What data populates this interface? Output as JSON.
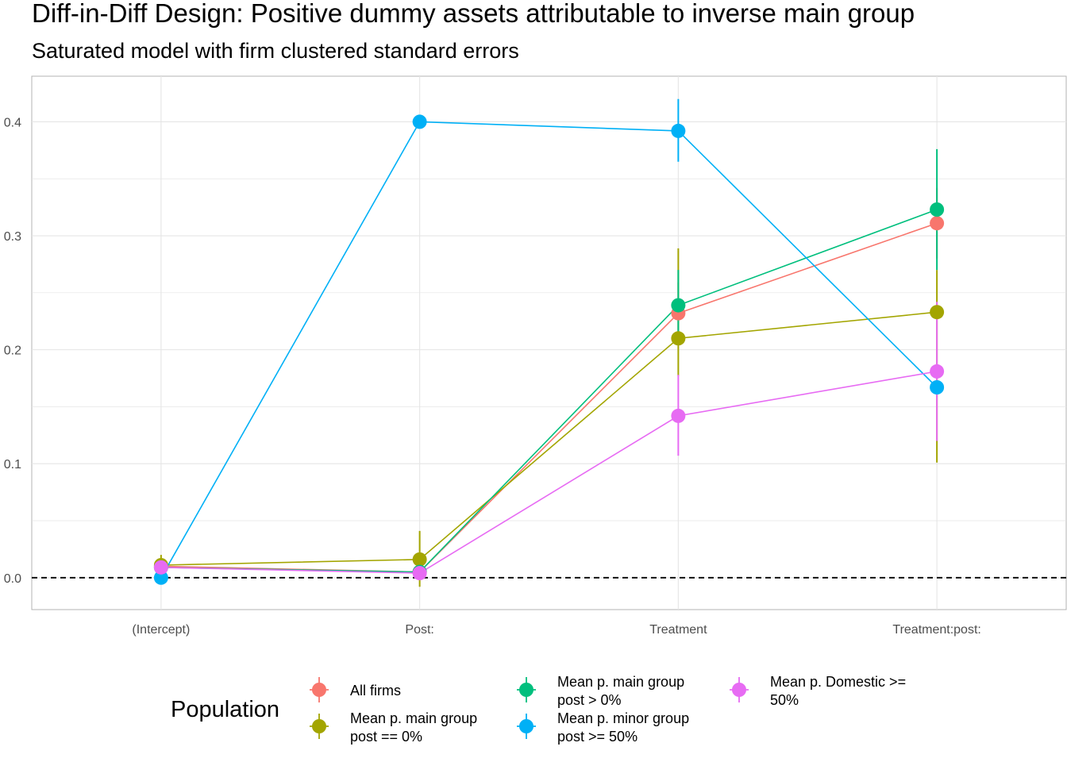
{
  "chart_data": {
    "type": "scatter",
    "title": "Diff-in-Diff Design: Positive dummy assets attributable to inverse main group",
    "subtitle": "Saturated model with firm clustered standard errors",
    "categories": [
      "(Intercept)",
      "Post:",
      "Treatment",
      "Treatment:post:"
    ],
    "ylim": [
      -0.028,
      0.44
    ],
    "y_ticks": [
      0.0,
      0.1,
      0.2,
      0.3,
      0.4
    ],
    "y_tick_labels": [
      "0.0",
      "0.1",
      "0.2",
      "0.3",
      "0.4"
    ],
    "grid": true,
    "reference_line": {
      "y": 0,
      "style": "dashed"
    },
    "legend": {
      "title": "Population",
      "position": "bottom"
    },
    "series": [
      {
        "label_lines": [
          "All firms"
        ],
        "color": "#F8766D",
        "values": [
          0.01,
          0.005,
          0.232,
          0.311
        ],
        "lower": [
          0.005,
          0.001,
          0.205,
          0.28
        ],
        "upper": [
          0.015,
          0.009,
          0.259,
          0.342
        ]
      },
      {
        "label_lines": [
          "Mean p. main group",
          "post == 0%"
        ],
        "color": "#A3A500",
        "values": [
          0.011,
          0.016,
          0.21,
          0.233
        ],
        "lower": [
          0.002,
          -0.008,
          0.177,
          0.101
        ],
        "upper": [
          0.02,
          0.041,
          0.289,
          0.27
        ]
      },
      {
        "label_lines": [
          "Mean p. main group",
          "post > 0%"
        ],
        "color": "#00BF7D",
        "values": [
          0.009,
          0.005,
          0.239,
          0.323
        ],
        "lower": [
          0.004,
          0.001,
          0.208,
          0.27
        ],
        "upper": [
          0.014,
          0.009,
          0.27,
          0.376
        ]
      },
      {
        "label_lines": [
          "Mean p. minor group",
          "post >= 50%"
        ],
        "color": "#00B0F6",
        "values": [
          0.0,
          0.4,
          0.392,
          0.167
        ],
        "lower": [
          0.0,
          0.4,
          0.365,
          0.167
        ],
        "upper": [
          0.0,
          0.4,
          0.42,
          0.167
        ]
      },
      {
        "label_lines": [
          "Mean p. Domestic >=",
          "50%"
        ],
        "color": "#E76BF3",
        "values": [
          0.009,
          0.004,
          0.142,
          0.181
        ],
        "lower": [
          0.004,
          0.001,
          0.107,
          0.12
        ],
        "upper": [
          0.014,
          0.007,
          0.178,
          0.242
        ]
      }
    ]
  }
}
